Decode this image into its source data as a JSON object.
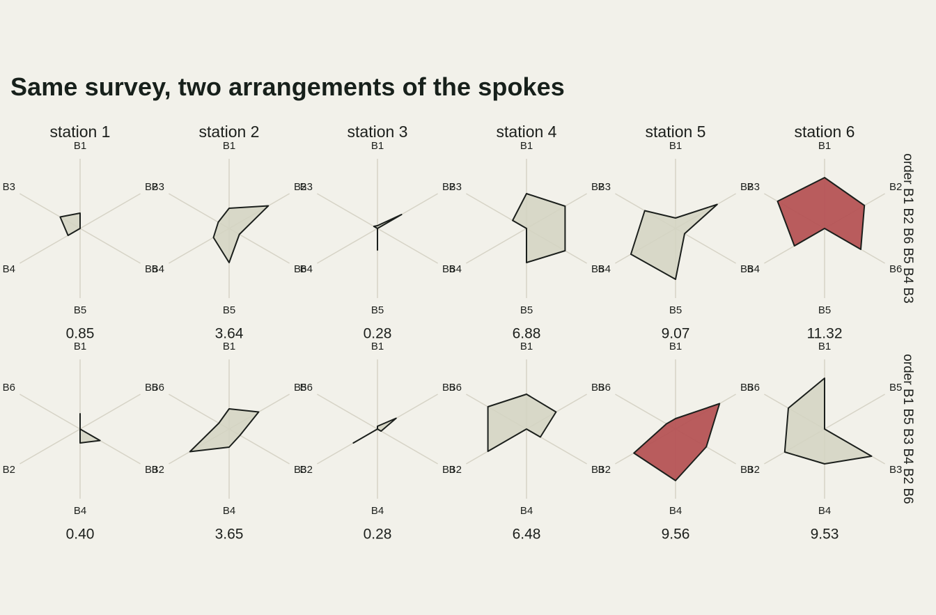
{
  "chart_data": {
    "type": "radar",
    "title": "Same survey, two arrangements of the spokes",
    "columns": [
      "station 1",
      "station 2",
      "station 3",
      "station 4",
      "station 5",
      "station 6"
    ],
    "rows": [
      {
        "label": "order B1 B2 B6 B5 B4 B3",
        "spokes": [
          "B1",
          "B2",
          "B6",
          "B5",
          "B4",
          "B3"
        ],
        "panels": [
          {
            "values": {
              "B1": 2.2,
              "B2": 0.0,
              "B3": 3.3,
              "B4": 2.0,
              "B5": 0.0,
              "B6": 0.0
            },
            "score": "0.85",
            "highlight": false
          },
          {
            "values": {
              "B1": 2.9,
              "B2": 6.5,
              "B3": 1.8,
              "B4": 2.6,
              "B5": 4.9,
              "B6": 1.7
            },
            "score": "3.64",
            "highlight": false
          },
          {
            "values": {
              "B1": 0.4,
              "B2": 4.0,
              "B3": 0.6,
              "B4": 0.0,
              "B5": 3.1,
              "B6": 0.0
            },
            "score": "0.28",
            "highlight": false
          },
          {
            "values": {
              "B1": 5.0,
              "B2": 6.4,
              "B3": 2.3,
              "B4": 0.0,
              "B5": 4.9,
              "B6": 6.4
            },
            "score": "6.88",
            "highlight": false
          },
          {
            "values": {
              "B1": 1.5,
              "B2": 6.9,
              "B3": 5.1,
              "B4": 7.4,
              "B5": 7.3,
              "B6": 1.5
            },
            "score": "9.07",
            "highlight": false
          },
          {
            "values": {
              "B1": 7.3,
              "B2": 6.6,
              "B3": 7.8,
              "B4": 5.0,
              "B5": 0.0,
              "B6": 6.0
            },
            "score": "11.32",
            "highlight": true
          }
        ]
      },
      {
        "label": "order B1 B5 B3 B4 B2 B6",
        "spokes": [
          "B1",
          "B5",
          "B3",
          "B4",
          "B2",
          "B6"
        ],
        "panels": [
          {
            "values": {
              "B1": 2.2,
              "B2": 0.0,
              "B3": 3.3,
              "B4": 2.0,
              "B5": 0.0,
              "B6": 0.0
            },
            "score": "0.40",
            "highlight": false
          },
          {
            "values": {
              "B1": 2.9,
              "B2": 6.5,
              "B3": 1.8,
              "B4": 2.6,
              "B5": 4.9,
              "B6": 1.7
            },
            "score": "3.65",
            "highlight": false
          },
          {
            "values": {
              "B1": 0.4,
              "B2": 4.0,
              "B3": 0.6,
              "B4": 0.0,
              "B5": 3.1,
              "B6": 0.0
            },
            "score": "0.28",
            "highlight": false
          },
          {
            "values": {
              "B1": 5.0,
              "B2": 6.4,
              "B3": 2.3,
              "B4": 0.0,
              "B5": 4.9,
              "B6": 6.4
            },
            "score": "6.48",
            "highlight": false
          },
          {
            "values": {
              "B1": 1.5,
              "B2": 6.9,
              "B3": 5.1,
              "B4": 7.4,
              "B5": 7.3,
              "B6": 1.5
            },
            "score": "9.56",
            "highlight": true
          },
          {
            "values": {
              "B1": 7.3,
              "B2": 6.6,
              "B3": 7.8,
              "B4": 5.0,
              "B5": 0.0,
              "B6": 6.0
            },
            "score": "9.53",
            "highlight": false
          }
        ]
      }
    ],
    "rmax": 10,
    "colors": {
      "fill": "#d3d3c2",
      "highlight_fill": "#b55355",
      "stroke": "#1b1f1c",
      "spoke": "#d6d3c6",
      "background": "#f2f1ea",
      "title": "#17201b"
    }
  }
}
